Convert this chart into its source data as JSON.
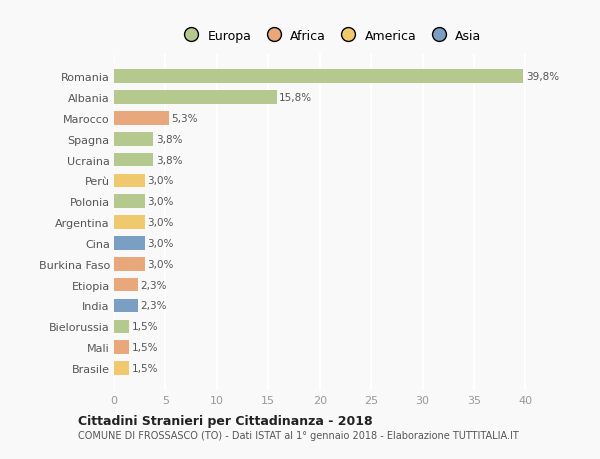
{
  "countries": [
    "Romania",
    "Albania",
    "Marocco",
    "Spagna",
    "Ucraina",
    "Perù",
    "Polonia",
    "Argentina",
    "Cina",
    "Burkina Faso",
    "Etiopia",
    "India",
    "Bielorussia",
    "Mali",
    "Brasile"
  ],
  "values": [
    39.8,
    15.8,
    5.3,
    3.8,
    3.8,
    3.0,
    3.0,
    3.0,
    3.0,
    3.0,
    2.3,
    2.3,
    1.5,
    1.5,
    1.5
  ],
  "labels": [
    "39,8%",
    "15,8%",
    "5,3%",
    "3,8%",
    "3,8%",
    "3,0%",
    "3,0%",
    "3,0%",
    "3,0%",
    "3,0%",
    "2,3%",
    "2,3%",
    "1,5%",
    "1,5%",
    "1,5%"
  ],
  "colors": [
    "#b5c98e",
    "#b5c98e",
    "#e8a87c",
    "#b5c98e",
    "#b5c98e",
    "#f0c96e",
    "#b5c98e",
    "#f0c96e",
    "#7a9fc2",
    "#e8a87c",
    "#e8a87c",
    "#7a9fc2",
    "#b5c98e",
    "#e8a87c",
    "#f0c96e"
  ],
  "legend_labels": [
    "Europa",
    "Africa",
    "America",
    "Asia"
  ],
  "legend_colors": [
    "#b5c98e",
    "#e8a87c",
    "#f0c96e",
    "#7a9fc2"
  ],
  "title": "Cittadini Stranieri per Cittadinanza - 2018",
  "subtitle": "COMUNE DI FROSSASCO (TO) - Dati ISTAT al 1° gennaio 2018 - Elaborazione TUTTITALIA.IT",
  "xlim": [
    0,
    42
  ],
  "xticks": [
    0,
    5,
    10,
    15,
    20,
    25,
    30,
    35,
    40
  ],
  "background_color": "#f9f9f9",
  "grid_color": "#ffffff"
}
